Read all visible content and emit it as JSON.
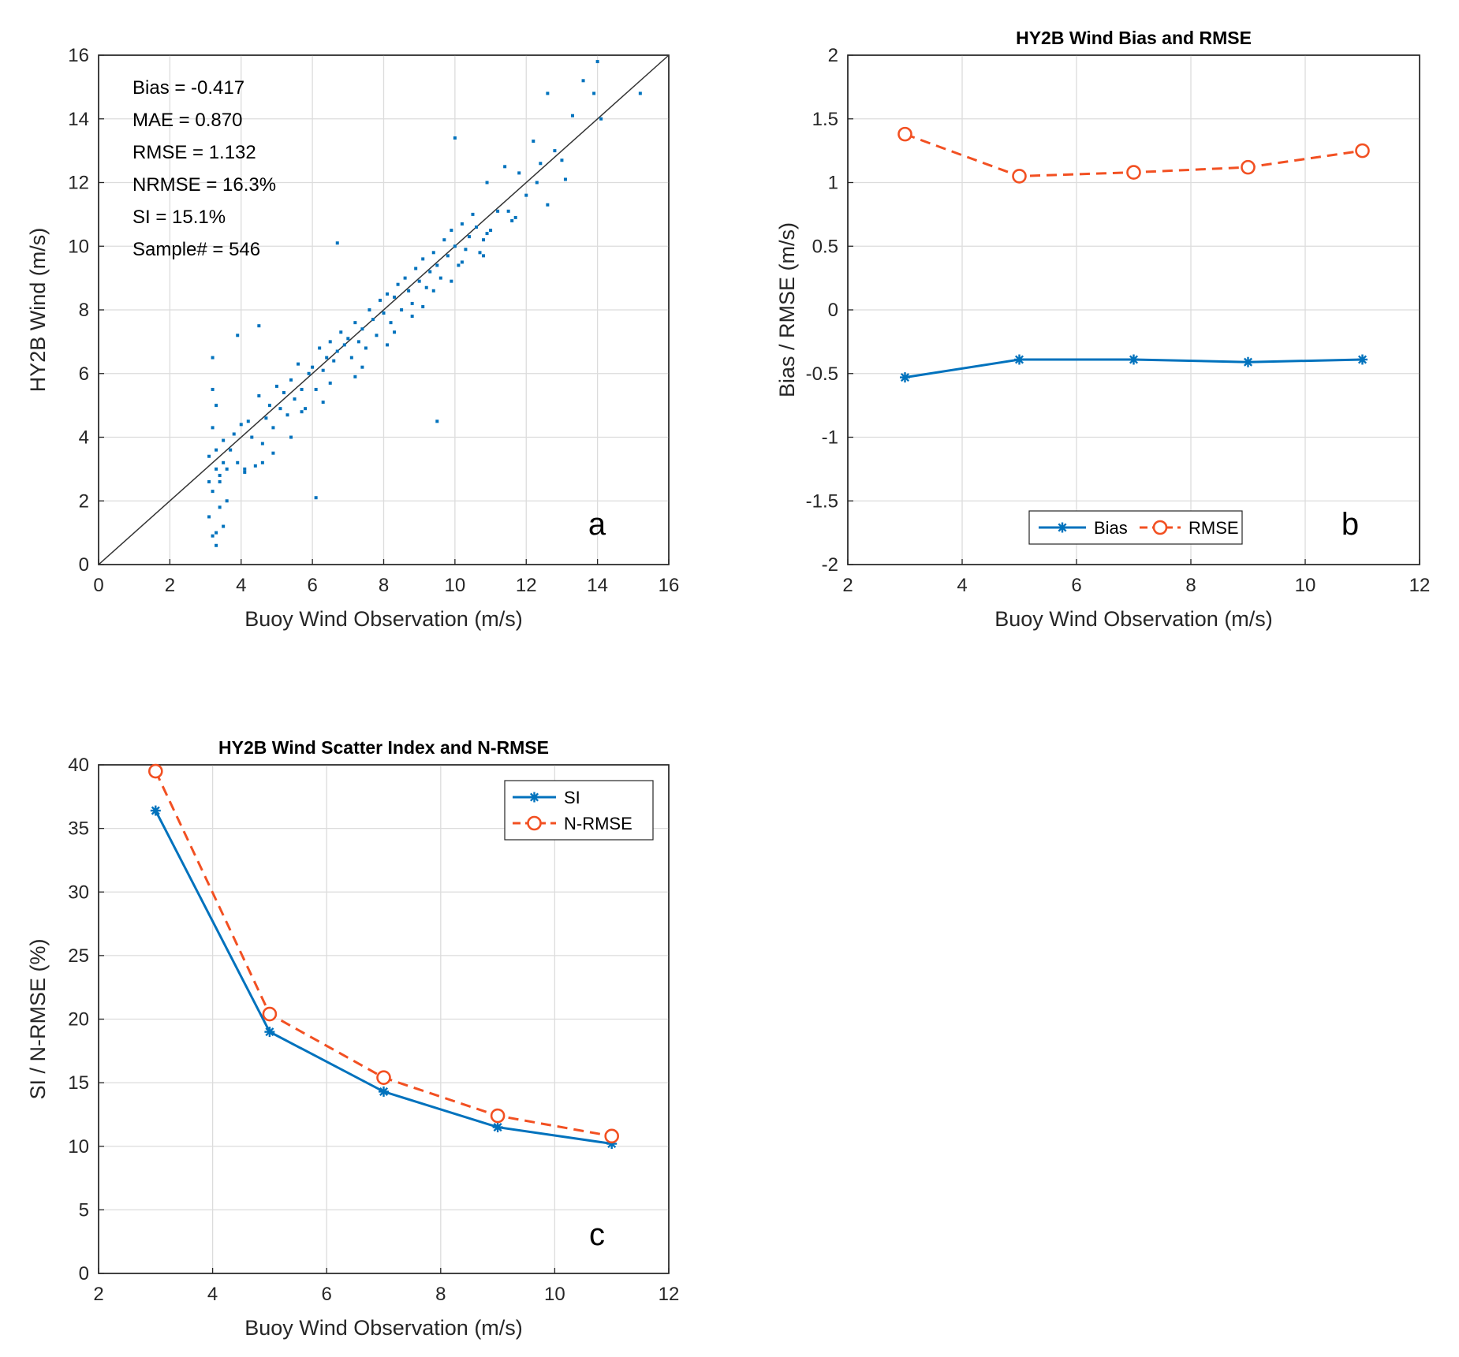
{
  "chart_data": [
    {
      "id": "a",
      "type": "scatter",
      "title": "",
      "xlabel": "Buoy Wind Observation (m/s)",
      "ylabel": "HY2B Wind (m/s)",
      "xlim": [
        0,
        16
      ],
      "ylim": [
        0,
        16
      ],
      "xticks": [
        0,
        2,
        4,
        6,
        8,
        10,
        12,
        14,
        16
      ],
      "yticks": [
        0,
        2,
        4,
        6,
        8,
        10,
        12,
        14,
        16
      ],
      "grid": true,
      "panel_label": "a",
      "reference_line": {
        "from": [
          0,
          0
        ],
        "to": [
          16,
          16
        ]
      },
      "annotations": [
        "Bias = -0.417",
        "MAE = 0.870",
        "RMSE = 1.132",
        "NRMSE = 16.3%",
        "SI = 15.1%",
        "Sample# = 546"
      ],
      "color": "#0072BD",
      "points": {
        "x": [
          3.1,
          3.2,
          3.2,
          3.3,
          3.3,
          3.4,
          3.4,
          3.5,
          3.5,
          3.6,
          3.2,
          3.3,
          3.4,
          3.5,
          3.1,
          3.2,
          3.3,
          3.6,
          3.7,
          3.8,
          3.9,
          4.0,
          4.1,
          4.2,
          4.3,
          4.4,
          4.5,
          4.6,
          4.7,
          4.8,
          4.9,
          5.0,
          5.1,
          5.2,
          5.3,
          5.4,
          5.5,
          5.6,
          5.7,
          5.8,
          5.9,
          6.0,
          6.1,
          6.2,
          6.3,
          6.4,
          6.5,
          6.6,
          6.7,
          6.8,
          6.9,
          7.0,
          7.1,
          7.2,
          7.3,
          7.4,
          7.5,
          7.6,
          7.7,
          7.8,
          7.9,
          8.0,
          8.1,
          8.2,
          8.3,
          8.4,
          8.5,
          8.6,
          8.7,
          8.8,
          8.9,
          9.0,
          9.1,
          9.2,
          9.3,
          9.4,
          9.5,
          9.6,
          9.7,
          9.8,
          9.9,
          10.0,
          10.1,
          10.2,
          10.3,
          10.4,
          10.5,
          10.6,
          10.7,
          10.8,
          10.9,
          11.0,
          11.2,
          11.4,
          11.6,
          11.8,
          12.0,
          12.2,
          12.4,
          12.6,
          12.8,
          13.0,
          13.3,
          13.6,
          13.9,
          14.0,
          15.2,
          3.2,
          3.9,
          4.5,
          6.1,
          9.5,
          6.7,
          10.0,
          3.1,
          4.6,
          5.4,
          6.3,
          7.2,
          8.1,
          8.8,
          9.4,
          10.2,
          10.9,
          11.5,
          12.3,
          3.3,
          4.1,
          4.9,
          5.7,
          6.5,
          7.4,
          8.3,
          9.1,
          9.9,
          10.8,
          11.7,
          12.6,
          13.1,
          14.1
        ],
        "y": [
          1.5,
          0.9,
          2.3,
          0.6,
          3.0,
          1.8,
          2.6,
          3.2,
          1.2,
          2.0,
          4.3,
          3.6,
          2.8,
          3.9,
          3.4,
          5.5,
          5.0,
          3.0,
          3.6,
          4.1,
          3.2,
          4.4,
          3.0,
          4.5,
          4.0,
          3.1,
          5.3,
          3.8,
          4.6,
          5.0,
          4.3,
          5.6,
          4.9,
          5.4,
          4.7,
          5.8,
          5.2,
          6.3,
          5.5,
          4.9,
          6.0,
          6.2,
          5.5,
          6.8,
          6.1,
          6.5,
          7.0,
          6.4,
          6.7,
          7.3,
          6.9,
          7.1,
          6.5,
          7.6,
          7.0,
          7.4,
          6.8,
          8.0,
          7.7,
          7.2,
          8.3,
          7.9,
          8.5,
          7.6,
          8.4,
          8.8,
          8.0,
          9.0,
          8.6,
          8.2,
          9.3,
          8.9,
          9.6,
          8.7,
          9.2,
          9.8,
          9.4,
          9.0,
          10.2,
          9.7,
          10.5,
          10.0,
          9.4,
          10.7,
          9.9,
          10.3,
          11.0,
          10.6,
          9.8,
          10.2,
          12.0,
          10.5,
          11.1,
          12.5,
          10.8,
          12.3,
          11.6,
          13.3,
          12.6,
          14.8,
          13.0,
          12.7,
          14.1,
          15.2,
          14.8,
          15.8,
          14.8,
          6.5,
          7.2,
          7.5,
          2.1,
          4.5,
          10.1,
          13.4,
          2.6,
          3.2,
          4.0,
          5.1,
          5.9,
          6.9,
          7.8,
          8.6,
          9.5,
          10.4,
          11.1,
          12.0,
          1.0,
          2.9,
          3.5,
          4.8,
          5.7,
          6.2,
          7.3,
          8.1,
          8.9,
          9.7,
          10.9,
          11.3,
          12.1,
          14.0
        ]
      }
    },
    {
      "id": "b",
      "type": "line",
      "title": "HY2B Wind Bias and RMSE",
      "xlabel": "Buoy Wind Observation (m/s)",
      "ylabel": "Bias / RMSE (m/s)",
      "xlim": [
        2,
        12
      ],
      "ylim": [
        -2,
        2
      ],
      "xticks": [
        2,
        4,
        6,
        8,
        10,
        12
      ],
      "yticks": [
        -2,
        -1.5,
        -1,
        -0.5,
        0,
        0.5,
        1,
        1.5,
        2
      ],
      "grid": true,
      "panel_label": "b",
      "legend_position": "bottom-center",
      "x": [
        3,
        5,
        7,
        9,
        11
      ],
      "series": [
        {
          "name": "Bias",
          "values": [
            -0.53,
            -0.39,
            -0.39,
            -0.41,
            -0.39
          ],
          "color": "#0072BD",
          "style": "solid",
          "marker": "asterisk"
        },
        {
          "name": "RMSE",
          "values": [
            1.38,
            1.05,
            1.08,
            1.12,
            1.25
          ],
          "color": "#F25022",
          "style": "dashed",
          "marker": "circle"
        }
      ]
    },
    {
      "id": "c",
      "type": "line",
      "title": "HY2B Wind Scatter Index and N-RMSE",
      "xlabel": "Buoy Wind Observation (m/s)",
      "ylabel": "SI / N-RMSE (%)",
      "xlim": [
        2,
        12
      ],
      "ylim": [
        0,
        40
      ],
      "xticks": [
        2,
        4,
        6,
        8,
        10,
        12
      ],
      "yticks": [
        0,
        5,
        10,
        15,
        20,
        25,
        30,
        35,
        40
      ],
      "grid": true,
      "panel_label": "c",
      "legend_position": "top-right",
      "x": [
        3,
        5,
        7,
        9,
        11
      ],
      "series": [
        {
          "name": "SI",
          "values": [
            36.4,
            19.0,
            14.3,
            11.5,
            10.2
          ],
          "color": "#0072BD",
          "style": "solid",
          "marker": "asterisk"
        },
        {
          "name": "N-RMSE",
          "values": [
            39.5,
            20.4,
            15.4,
            12.4,
            10.8
          ],
          "color": "#F25022",
          "style": "dashed",
          "marker": "circle"
        }
      ]
    }
  ]
}
